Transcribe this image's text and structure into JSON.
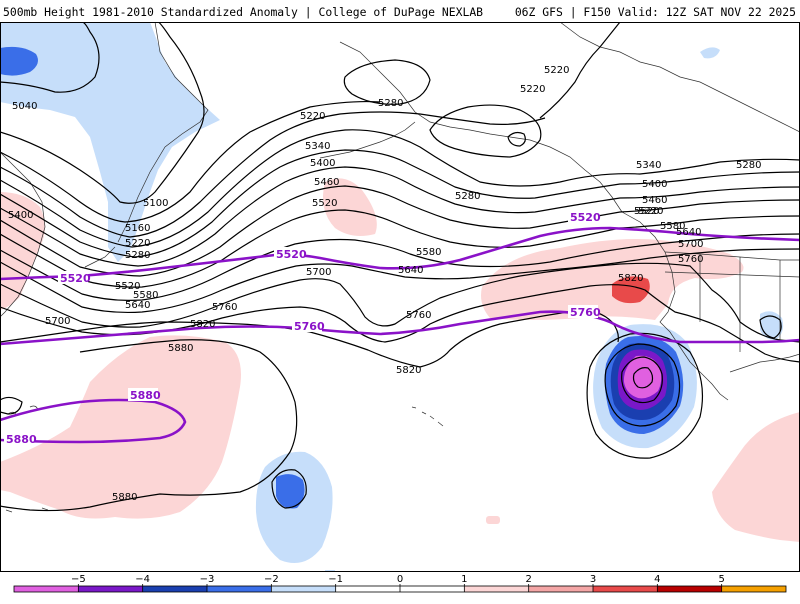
{
  "header": {
    "left": "500mb Height 1981-2010 Standardized Anomaly | College of DuPage NEXLAB",
    "right": "06Z GFS | F150 Valid: 12Z SAT NOV 22 2025"
  },
  "colors": {
    "neg5": "#e060e0",
    "neg4": "#7a18c8",
    "neg3": "#1a3fb0",
    "neg2": "#3a6ee8",
    "neg1": "#c6defa",
    "pos1": "#fcd6d6",
    "pos2": "#f4a6a6",
    "pos3": "#e84a4a",
    "pos4": "#b80000",
    "pos5": "#f5a000",
    "contour": "#000000",
    "highlight": "#8a12c8",
    "coast": "#333333"
  },
  "labels": {
    "c5040": "5040",
    "c5100": "5100",
    "c5160": "5160",
    "c5220a": "5220",
    "c5220b": "5220",
    "c5220c": "5220",
    "c5220d": "5220",
    "c5220e": "5220",
    "c5280a": "5280",
    "c5280b": "5280",
    "c5280c": "5280",
    "c5280d": "5280",
    "c5340a": "5340",
    "c5340b": "5340",
    "c5400a": "5400",
    "c5400b": "5400",
    "c5400c": "5400",
    "c5460a": "5460",
    "c5460b": "5460",
    "c5520a": "5520",
    "c5520b": "5520",
    "c5520c": "5520",
    "c5580a": "5580",
    "c5580b": "5580",
    "c5580c": "5580",
    "c5640a": "5640",
    "c5640b": "5640",
    "c5640c": "5640",
    "c5700a": "5700",
    "c5700b": "5700",
    "c5700c": "5700",
    "c5760a": "5760",
    "c5760b": "5760",
    "c5760c": "5760",
    "c5820a": "5820",
    "c5820b": "5820",
    "c5820c": "5820",
    "c5880a": "5880",
    "c5880b": "5880",
    "p5520a": "5520",
    "p5520b": "5520",
    "p5520c": "5520",
    "p5760a": "5760",
    "p5760b": "5760",
    "p5880a": "5880",
    "p5880b": "5880"
  },
  "legend": {
    "ticks": [
      "−5",
      "−4",
      "−3",
      "−2",
      "−1",
      "0",
      "1",
      "2",
      "3",
      "4",
      "5"
    ],
    "range": [
      -6,
      6
    ]
  }
}
